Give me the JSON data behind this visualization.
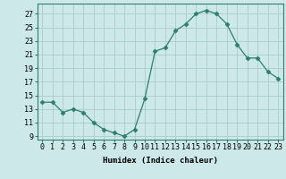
{
  "x": [
    0,
    1,
    2,
    3,
    4,
    5,
    6,
    7,
    8,
    9,
    10,
    11,
    12,
    13,
    14,
    15,
    16,
    17,
    18,
    19,
    20,
    21,
    22,
    23
  ],
  "y": [
    14.0,
    14.0,
    12.5,
    13.0,
    12.5,
    11.0,
    10.0,
    9.5,
    9.0,
    10.0,
    14.5,
    21.5,
    22.0,
    24.5,
    25.5,
    27.0,
    27.5,
    27.0,
    25.5,
    22.5,
    20.5,
    20.5,
    18.5,
    17.5
  ],
  "line_color": "#2e7d6e",
  "marker": "D",
  "marker_size": 2.5,
  "bg_color": "#cce8e8",
  "grid_color": "#aacccc",
  "xlabel": "Humidex (Indice chaleur)",
  "ylim": [
    8.5,
    28.5
  ],
  "yticks": [
    9,
    11,
    13,
    15,
    17,
    19,
    21,
    23,
    25,
    27
  ],
  "xtick_labels": [
    "0",
    "1",
    "2",
    "3",
    "4",
    "5",
    "6",
    "7",
    "8",
    "9",
    "10",
    "11",
    "12",
    "13",
    "14",
    "15",
    "16",
    "17",
    "18",
    "19",
    "20",
    "21",
    "22",
    "23"
  ],
  "axis_fontsize": 6.5,
  "tick_fontsize": 6.0
}
